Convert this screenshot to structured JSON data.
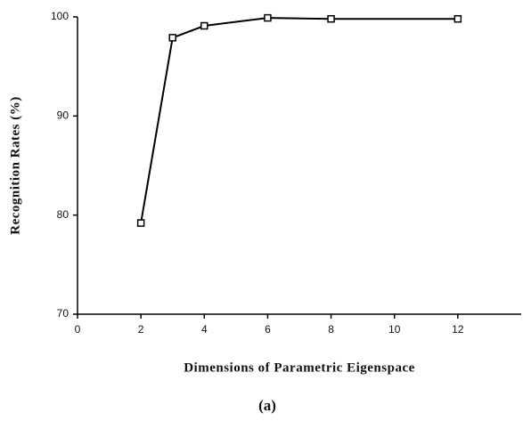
{
  "chart_data": {
    "type": "line",
    "x_label": "Dimensions of Parametric Eigenspace",
    "y_label": "Recognition Rates (%)",
    "caption": "(a)",
    "x": [
      2,
      3,
      4,
      6,
      8,
      12
    ],
    "series": [
      {
        "color": "#000000",
        "values": [
          79.2,
          97.9,
          99.1,
          99.9,
          99.8,
          99.8
        ]
      }
    ],
    "xlim": [
      0,
      14
    ],
    "xticks": [
      0,
      2,
      4,
      6,
      8,
      10,
      12
    ],
    "ylim": [
      70,
      100
    ],
    "yticks": [
      70,
      80,
      90,
      100
    ]
  }
}
